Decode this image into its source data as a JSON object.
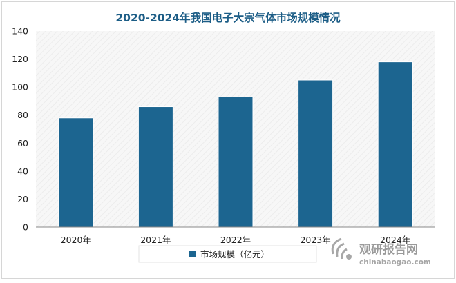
{
  "chart_data": {
    "type": "bar",
    "title": "2020-2024年我国电子大宗气体市场规模情况",
    "categories": [
      "2020年",
      "2021年",
      "2022年",
      "2023年",
      "2024年"
    ],
    "series": [
      {
        "name": "市场规模（亿元）",
        "values": [
          78,
          86,
          93,
          105,
          118
        ]
      }
    ],
    "ylim": [
      0,
      140
    ],
    "yticks": [
      0,
      20,
      40,
      60,
      80,
      100,
      120,
      140
    ],
    "xlabel": "",
    "ylabel": "",
    "grid": false,
    "legend": "bottom-center",
    "colors": {
      "bar": "#1c6590",
      "title": "#1c5d86",
      "axis_text": "#222222",
      "plot_bg": "#f7f7f7"
    }
  },
  "watermark": {
    "brand": "观研报告网",
    "url": "chinabaogao.com"
  }
}
